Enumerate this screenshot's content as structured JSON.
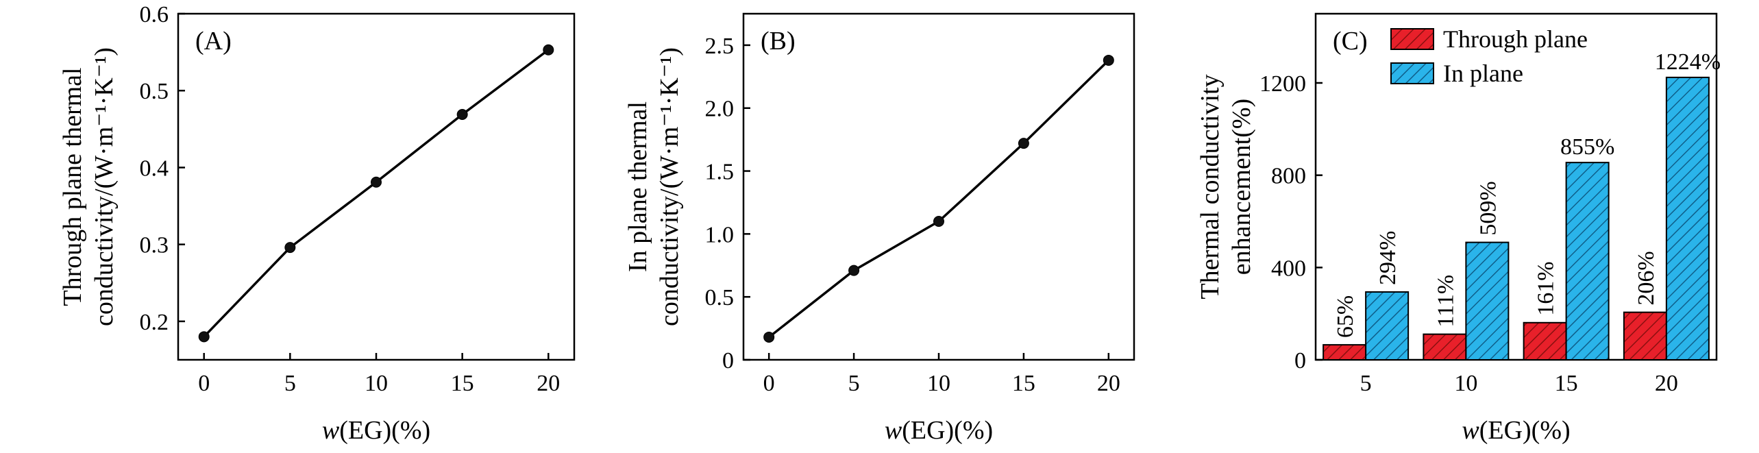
{
  "chart_data": [
    {
      "type": "line",
      "panel_label": "(A)",
      "xlabel_italic": "w",
      "xlabel_rest": "(EG)(%)",
      "ylabel_lines": [
        "Through plane thermal",
        "conductivity/(W·m⁻¹·K⁻¹)"
      ],
      "x": [
        0,
        5,
        10,
        15,
        20
      ],
      "y": [
        0.18,
        0.296,
        0.381,
        0.469,
        0.553
      ],
      "xlim": [
        -1.5,
        21.5
      ],
      "ylim": [
        0.15,
        0.6
      ],
      "xticks": [
        0,
        5,
        10,
        15,
        20
      ],
      "yticks": [
        0.2,
        0.3,
        0.4,
        0.5,
        0.6
      ],
      "xtick_labels": [
        "0",
        "5",
        "10",
        "15",
        "20"
      ],
      "ytick_labels": [
        "0.2",
        "0.3",
        "0.4",
        "0.5",
        "0.6"
      ]
    },
    {
      "type": "line",
      "panel_label": "(B)",
      "xlabel_italic": "w",
      "xlabel_rest": "(EG)(%)",
      "ylabel_lines": [
        "In plane thermal",
        "conductivity/(W·m⁻¹·K⁻¹)"
      ],
      "x": [
        0,
        5,
        10,
        15,
        20
      ],
      "y": [
        0.18,
        0.71,
        1.1,
        1.72,
        2.38
      ],
      "xlim": [
        -1.5,
        21.5
      ],
      "ylim": [
        0,
        2.75
      ],
      "xticks": [
        0,
        5,
        10,
        15,
        20
      ],
      "yticks": [
        0,
        0.5,
        1.0,
        1.5,
        2.0,
        2.5
      ],
      "xtick_labels": [
        "0",
        "5",
        "10",
        "15",
        "20"
      ],
      "ytick_labels": [
        "0",
        "0.5",
        "1.0",
        "1.5",
        "2.0",
        "2.5"
      ]
    },
    {
      "type": "bar",
      "panel_label": "(C)",
      "xlabel_italic": "w",
      "xlabel_rest": "(EG)(%)",
      "ylabel_lines": [
        "Thermal conductivity",
        "enhancement(%)"
      ],
      "categories": [
        "5",
        "10",
        "15",
        "20"
      ],
      "series": [
        {
          "name": "Through plane",
          "values": [
            65,
            111,
            161,
            206
          ],
          "labels": [
            "65%",
            "111%",
            "161%",
            "206%"
          ],
          "color": "#e8202a"
        },
        {
          "name": "In plane",
          "values": [
            294,
            509,
            855,
            1224
          ],
          "labels": [
            "294%",
            "509%",
            "855%",
            "1224%"
          ],
          "color": "#2ab4ea"
        }
      ],
      "ylim": [
        0,
        1500
      ],
      "yticks": [
        0,
        400,
        800,
        1200
      ],
      "ytick_labels": [
        "0",
        "400",
        "800",
        "1200"
      ],
      "legend_position": "top",
      "bar_pattern": "diagonal-hatch"
    }
  ]
}
